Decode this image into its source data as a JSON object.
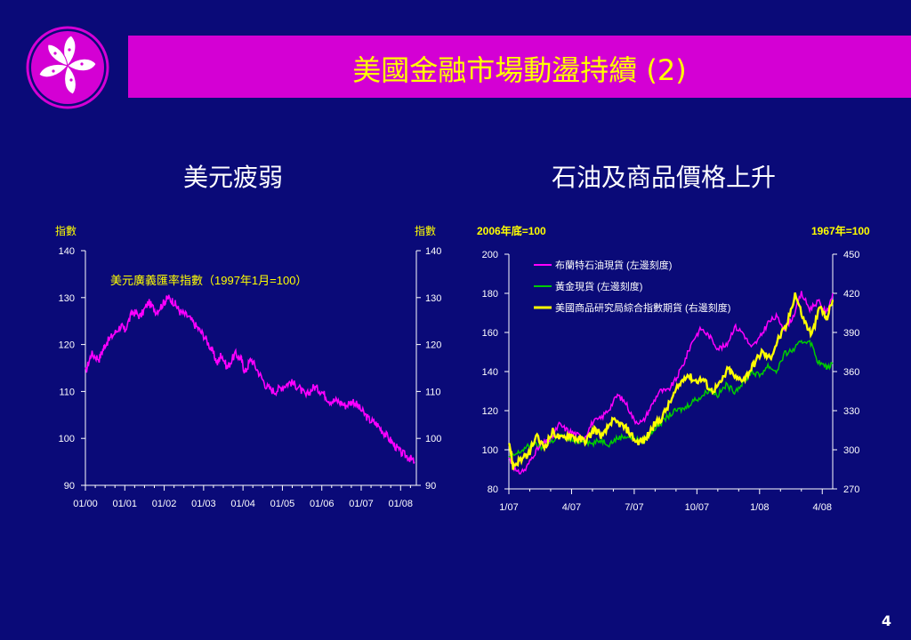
{
  "colors": {
    "background": "#0a0a78",
    "title_bar": "#d400d4",
    "title_text": "#ffff00",
    "logo": "#d400d4"
  },
  "logo": {
    "icon": "bauhinia-flower-icon"
  },
  "title": "美國金融市場動盪持續 (2)",
  "page_number": "4",
  "chart_data": [
    {
      "type": "line",
      "subtitle": "美元疲弱",
      "ylabel_left": "指數",
      "ylabel_right": "指數",
      "annotation": "美元廣義匯率指數（1997年1月=100）",
      "ylim": [
        90,
        140
      ],
      "yticks": [
        90,
        100,
        110,
        120,
        130,
        140
      ],
      "ytick_labels": [
        "90",
        "100",
        "110",
        "120",
        "130",
        "140"
      ],
      "xtick_labels": [
        "01/00",
        "01/01",
        "01/02",
        "01/03",
        "01/04",
        "01/05",
        "01/06",
        "01/07",
        "01/08"
      ],
      "x_range": [
        0,
        8.4
      ],
      "series": [
        {
          "color": "#ff00ff",
          "x": [
            0,
            0.15,
            0.35,
            0.5,
            0.7,
            0.9,
            1.0,
            1.2,
            1.4,
            1.6,
            1.8,
            2.0,
            2.1,
            2.25,
            2.4,
            2.6,
            2.8,
            3.0,
            3.2,
            3.35,
            3.45,
            3.6,
            3.8,
            3.95,
            4.05,
            4.2,
            4.4,
            4.6,
            4.8,
            5.0,
            5.2,
            5.4,
            5.6,
            5.8,
            6.0,
            6.2,
            6.4,
            6.6,
            6.8,
            7.0,
            7.2,
            7.4,
            7.6,
            7.8,
            8.0,
            8.2,
            8.35
          ],
          "values": [
            114,
            118,
            117,
            120,
            122,
            124,
            123,
            127,
            126,
            129,
            127,
            129,
            130,
            129,
            127,
            126,
            124,
            122,
            119,
            116,
            118,
            115,
            118,
            117,
            114,
            117,
            114,
            111,
            110,
            111,
            112,
            111,
            109,
            111,
            110,
            108,
            108,
            107,
            108,
            106,
            104,
            103,
            101,
            99,
            97,
            96,
            95
          ]
        }
      ]
    },
    {
      "type": "line",
      "subtitle": "石油及商品價格上升",
      "ylabel_left": "2006年底=100",
      "ylabel_right": "1967年=100",
      "ylim": [
        80,
        200
      ],
      "yticks": [
        80,
        100,
        120,
        140,
        160,
        180,
        200
      ],
      "ytick_labels": [
        "80",
        "100",
        "120",
        "140",
        "160",
        "180",
        "200"
      ],
      "ylim_right": [
        270,
        450
      ],
      "yticks_right": [
        270,
        300,
        330,
        360,
        390,
        420,
        450
      ],
      "ytick_labels_right": [
        "270",
        "300",
        "330",
        "360",
        "390",
        "420",
        "450"
      ],
      "xtick_labels": [
        "1/07",
        "4/07",
        "7/07",
        "10/07",
        "1/08",
        "4/08"
      ],
      "x_range": [
        0,
        15.5
      ],
      "legend_position": "top-left",
      "series": [
        {
          "name": "布蘭特石油現貨 (左邊刻度)",
          "color": "#ff00ff",
          "axis": "left",
          "x": [
            0,
            0.4,
            0.8,
            1.2,
            1.6,
            2.0,
            2.4,
            2.8,
            3.2,
            3.6,
            4.0,
            4.4,
            4.8,
            5.2,
            5.6,
            6.0,
            6.4,
            6.8,
            7.2,
            7.6,
            8.0,
            8.4,
            8.8,
            9.2,
            9.6,
            10.0,
            10.4,
            10.8,
            11.2,
            11.6,
            12.0,
            12.4,
            12.8,
            13.2,
            13.6,
            14.0,
            14.4,
            14.8,
            15.2,
            15.5
          ],
          "values": [
            96,
            88,
            90,
            98,
            103,
            105,
            113,
            110,
            108,
            106,
            114,
            116,
            121,
            128,
            124,
            115,
            114,
            122,
            130,
            130,
            136,
            145,
            156,
            162,
            158,
            152,
            153,
            163,
            160,
            152,
            157,
            165,
            168,
            162,
            168,
            180,
            172,
            176,
            170,
            180
          ]
        },
        {
          "name": "黃金現貨 (左邊刻度)",
          "color": "#00cc00",
          "axis": "left",
          "x": [
            0,
            0.4,
            0.8,
            1.2,
            1.6,
            2.0,
            2.4,
            2.8,
            3.2,
            3.6,
            4.0,
            4.4,
            4.8,
            5.2,
            5.6,
            6.0,
            6.4,
            6.8,
            7.2,
            7.6,
            8.0,
            8.4,
            8.8,
            9.2,
            9.6,
            10.0,
            10.4,
            10.8,
            11.2,
            11.6,
            12.0,
            12.4,
            12.8,
            13.2,
            13.6,
            14.0,
            14.4,
            14.8,
            15.2,
            15.5
          ],
          "values": [
            96,
            98,
            101,
            103,
            101,
            104,
            107,
            106,
            104,
            105,
            103,
            105,
            103,
            106,
            107,
            106,
            104,
            109,
            113,
            117,
            120,
            121,
            125,
            127,
            131,
            128,
            133,
            130,
            134,
            140,
            138,
            143,
            140,
            149,
            151,
            155,
            156,
            145,
            142,
            144
          ]
        },
        {
          "name": "美國商品研究局綜合指數期貨 (右邊刻度)",
          "color": "#ffff00",
          "axis": "right",
          "x": [
            0,
            0.2,
            0.5,
            0.9,
            1.3,
            1.7,
            2.1,
            2.5,
            2.9,
            3.3,
            3.7,
            4.1,
            4.5,
            4.9,
            5.3,
            5.7,
            6.1,
            6.5,
            6.9,
            7.3,
            7.7,
            8.1,
            8.5,
            8.9,
            9.3,
            9.7,
            10.1,
            10.5,
            10.9,
            11.3,
            11.7,
            12.1,
            12.5,
            12.9,
            13.3,
            13.7,
            14.1,
            14.5,
            14.9,
            15.2,
            15.5
          ],
          "values": [
            308,
            287,
            292,
            295,
            310,
            302,
            314,
            308,
            312,
            308,
            307,
            316,
            310,
            322,
            320,
            315,
            306,
            307,
            318,
            324,
            336,
            348,
            358,
            353,
            354,
            345,
            350,
            362,
            354,
            355,
            365,
            375,
            370,
            385,
            395,
            420,
            400,
            388,
            410,
            400,
            415
          ]
        }
      ]
    }
  ]
}
